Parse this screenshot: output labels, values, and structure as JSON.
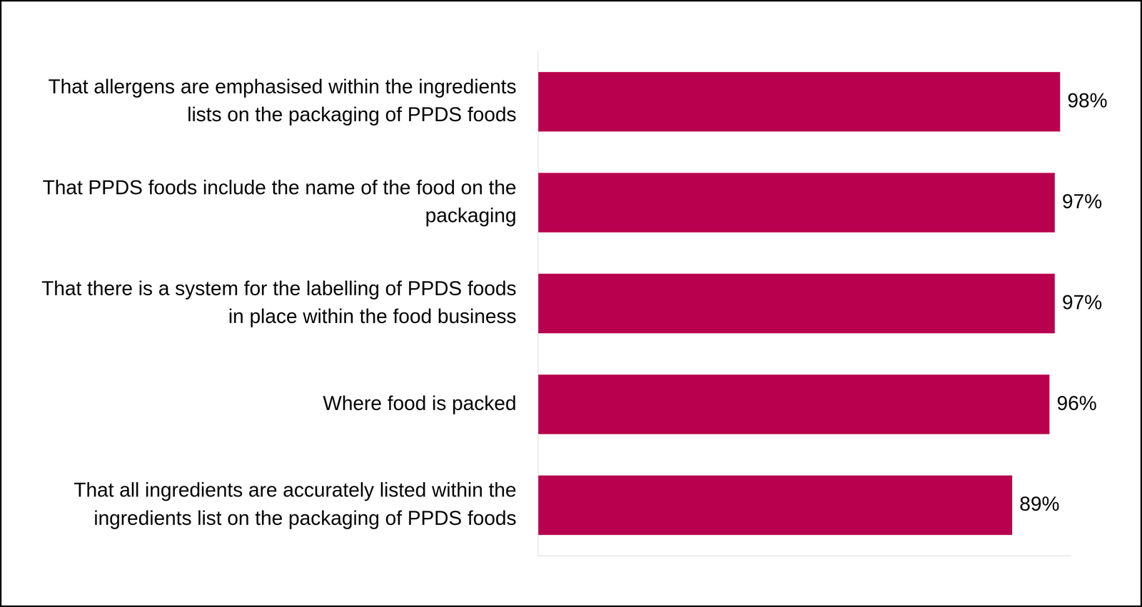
{
  "chart_data": {
    "type": "bar",
    "orientation": "horizontal",
    "categories": [
      "That allergens are emphasised within the ingredients lists on the packaging of PPDS foods",
      "That PPDS foods include the name of the food on the packaging",
      "That there is a system for the labelling of PPDS foods in place within the food business",
      "Where food is packed",
      "That all ingredients are accurately listed within the ingredients list on the packaging of PPDS foods"
    ],
    "values": [
      98,
      97,
      97,
      96,
      89
    ],
    "value_labels": [
      "98%",
      "97%",
      "97%",
      "96%",
      "89%"
    ],
    "color": "#b8004e",
    "xlim": [
      0,
      100
    ],
    "data_labels": true,
    "tick_labels": "y",
    "grid": false
  }
}
